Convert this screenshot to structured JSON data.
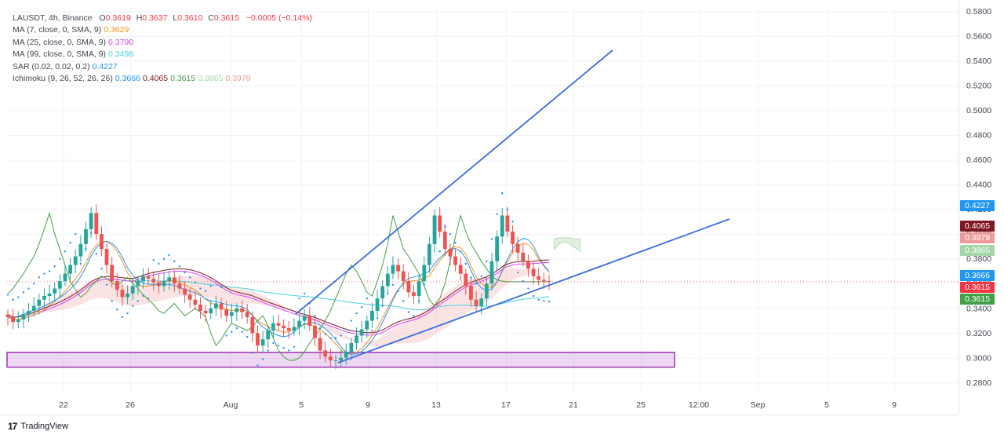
{
  "header": {
    "symbol": "LAUSDT, 4h, Binance",
    "open_label": "O",
    "open": "0.3619",
    "high_label": "H",
    "high": "0.3637",
    "low_label": "L",
    "low": "0.3610",
    "close_label": "C",
    "close": "0.3615",
    "change": "−0.0005 (−0.14%)"
  },
  "indicators": [
    {
      "label": "MA (7, close, 0, SMA, 9)",
      "values": [
        "0.3629"
      ],
      "colors": [
        "#f7931a"
      ]
    },
    {
      "label": "MA (25, close, 0, SMA, 9)",
      "values": [
        "0.3790"
      ],
      "colors": [
        "#e040fb"
      ]
    },
    {
      "label": "MA (99, close, 0, SMA, 9)",
      "values": [
        "0.3498"
      ],
      "colors": [
        "#4dd0e1"
      ]
    },
    {
      "label": "SAR (0.02, 0.02, 0.2)",
      "values": [
        "0.4227"
      ],
      "colors": [
        "#2196f3"
      ]
    },
    {
      "label": "Ichimoku (9, 26, 52, 26, 26)",
      "values": [
        "0.3666",
        "0.4065",
        "0.3615",
        "0.3865",
        "0.3979"
      ],
      "colors": [
        "#2196f3",
        "#801922",
        "#43a047",
        "#a5d6a7",
        "#ef9a9a"
      ]
    }
  ],
  "price_badges": [
    {
      "text": "0.4227",
      "color": "#2196f3",
      "price": 0.4227
    },
    {
      "text": "0.4065",
      "color": "#801922",
      "price": 0.4065
    },
    {
      "text": "0.3979",
      "color": "#ef9a9a",
      "price": 0.3979
    },
    {
      "text": "0.3865",
      "color": "#a5d6a7",
      "price": 0.3865
    },
    {
      "text": "0.3666",
      "color": "#2196f3",
      "price": 0.3666
    },
    {
      "text": "0.3615",
      "color": "#f23645",
      "price": 0.3615
    },
    {
      "text": "0.3615",
      "color": "#43a047",
      "price": 0.3615
    }
  ],
  "brand": {
    "name": "TradingView",
    "icon": "tradingview-logo-icon"
  },
  "chart_data": {
    "type": "candlestick",
    "y_ticks": [
      "0.5800",
      "0.5600",
      "0.5400",
      "0.5200",
      "0.5000",
      "0.4800",
      "0.4600",
      "0.4400",
      "0.4200",
      "0.4000",
      "0.3800",
      "0.3600",
      "0.3400",
      "0.3200",
      "0.3000",
      "0.2800"
    ],
    "ylim": [
      0.272,
      0.584
    ],
    "x_ticks": [
      "22",
      "26",
      "Aug",
      "5",
      "9",
      "13",
      "17",
      "21",
      "25",
      "12:00",
      "Sep",
      "5",
      "9"
    ],
    "grid": true,
    "last_close": 0.3615,
    "colors": {
      "up": "#26a69a",
      "down": "#ef5350",
      "cloud_bull": "#a5d6a7",
      "cloud_bear": "#ef9a9a",
      "tenkan": "#2196f3",
      "kijun": "#801922",
      "chikou": "#43a047",
      "sar": "#2196f3",
      "ma7": "#f7931a",
      "ma25": "#e040fb",
      "ma99": "#4dd0e1",
      "trendline": "#3a6fe0",
      "support_zone": "#9c27b0"
    },
    "support_zone": {
      "price_low": 0.2925,
      "price_high": 0.3045
    },
    "candles_close": [
      0.333,
      0.329,
      0.331,
      0.335,
      0.338,
      0.342,
      0.347,
      0.35,
      0.352,
      0.356,
      0.362,
      0.368,
      0.375,
      0.382,
      0.392,
      0.404,
      0.417,
      0.4,
      0.388,
      0.375,
      0.362,
      0.355,
      0.349,
      0.352,
      0.358,
      0.362,
      0.366,
      0.364,
      0.361,
      0.358,
      0.362,
      0.365,
      0.36,
      0.356,
      0.351,
      0.347,
      0.343,
      0.338,
      0.336,
      0.34,
      0.344,
      0.339,
      0.334,
      0.337,
      0.34,
      0.337,
      0.333,
      0.32,
      0.31,
      0.315,
      0.322,
      0.328,
      0.326,
      0.324,
      0.322,
      0.325,
      0.33,
      0.334,
      0.326,
      0.316,
      0.306,
      0.301,
      0.298,
      0.298,
      0.3,
      0.305,
      0.312,
      0.318,
      0.323,
      0.33,
      0.338,
      0.348,
      0.358,
      0.368,
      0.375,
      0.37,
      0.362,
      0.353,
      0.35,
      0.362,
      0.375,
      0.392,
      0.415,
      0.402,
      0.388,
      0.382,
      0.375,
      0.368,
      0.358,
      0.347,
      0.342,
      0.348,
      0.36,
      0.378,
      0.398,
      0.415,
      0.402,
      0.392,
      0.385,
      0.378,
      0.372,
      0.366,
      0.363,
      0.362,
      0.3615
    ],
    "trendlines": [
      {
        "name": "upper",
        "from": {
          "date": "Aug 4 20:00",
          "price": 0.335
        },
        "to": {
          "date": "Aug 23 16:00",
          "price": 0.553
        }
      },
      {
        "name": "lower",
        "from": {
          "date": "Aug 7 04:00",
          "price": 0.298
        },
        "to": {
          "date": "Aug 30 20:00",
          "price": 0.412
        }
      }
    ]
  }
}
